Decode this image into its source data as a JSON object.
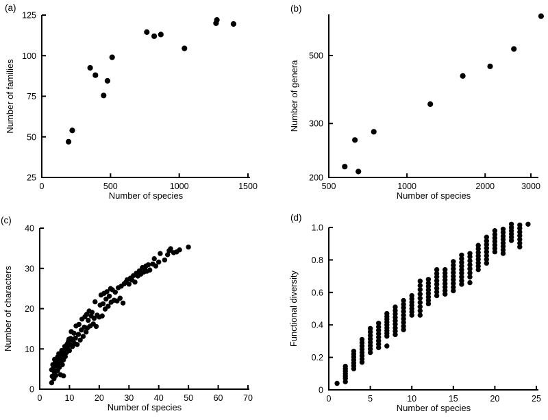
{
  "figure": {
    "background": "#ffffff",
    "ink_color": "#000000",
    "marker": "filled-circle"
  },
  "chart_data": [
    {
      "id": "a",
      "panel_label": "(a)",
      "type": "scatter",
      "xlabel": "Number of species",
      "ylabel": "Number of families",
      "xscale": "linear",
      "yscale": "linear",
      "xlim": [
        0,
        1500
      ],
      "ylim": [
        25,
        125
      ],
      "grid": false,
      "legend": "none",
      "xticks": {
        "values": [
          0,
          500,
          1000,
          1500
        ],
        "labels": [
          "0",
          "500",
          "1000",
          "1500"
        ]
      },
      "yticks": {
        "values": [
          25,
          50,
          75,
          100,
          125
        ],
        "labels": [
          "25",
          "50",
          "75",
          "100",
          "125"
        ]
      },
      "points": [
        [
          195,
          47
        ],
        [
          222,
          54
        ],
        [
          352,
          92.5
        ],
        [
          390,
          88
        ],
        [
          450,
          75.5
        ],
        [
          478,
          84.5
        ],
        [
          512,
          99
        ],
        [
          764,
          114.5
        ],
        [
          818,
          112
        ],
        [
          866,
          113
        ],
        [
          1038,
          104.5
        ],
        [
          1268,
          120
        ],
        [
          1274,
          122
        ],
        [
          1395,
          119.5
        ]
      ]
    },
    {
      "id": "b",
      "panel_label": "(b)",
      "type": "scatter",
      "xlabel": "Number of species",
      "ylabel": "Number of genera",
      "xscale": "log",
      "yscale": "log",
      "xlim": [
        500,
        3000
      ],
      "ylim": [
        200,
        500
      ],
      "grid": false,
      "legend": "none",
      "xticks": {
        "values": [
          500,
          1000,
          2000,
          3000
        ],
        "labels": [
          "500",
          "1000",
          "2000",
          "3000"
        ]
      },
      "yticks": {
        "values": [
          200,
          300,
          500
        ],
        "labels": [
          "200",
          "300",
          "500"
        ]
      },
      "points": [
        [
          576,
          217
        ],
        [
          630,
          265
        ],
        [
          650,
          209
        ],
        [
          745,
          282
        ],
        [
          1230,
          347
        ],
        [
          1640,
          429
        ],
        [
          2090,
          461
        ],
        [
          2580,
          525
        ],
        [
          3285,
          672
        ]
      ]
    },
    {
      "id": "c",
      "panel_label": "(c)",
      "type": "scatter",
      "xlabel": "Number of species",
      "ylabel": "Number of characters",
      "xscale": "linear",
      "yscale": "linear",
      "xlim": [
        0,
        70
      ],
      "ylim": [
        0,
        40
      ],
      "grid": false,
      "legend": "none",
      "xticks": {
        "values": [
          0,
          10,
          20,
          30,
          40,
          50,
          60,
          70
        ],
        "labels": [
          "0",
          "10",
          "20",
          "30",
          "40",
          "50",
          "60",
          "70"
        ]
      },
      "yticks": {
        "values": [
          0,
          10,
          20,
          30,
          40
        ],
        "labels": [
          "0",
          "10",
          "20",
          "30",
          "40"
        ]
      },
      "points": [
        [
          4,
          1.6
        ],
        [
          4.2,
          3.2
        ],
        [
          4,
          4.8
        ],
        [
          4.4,
          6.1
        ],
        [
          4.8,
          2.6
        ],
        [
          5,
          4.1
        ],
        [
          4.6,
          5.2
        ],
        [
          5.2,
          6.6
        ],
        [
          5,
          7.4
        ],
        [
          5.4,
          3.4
        ],
        [
          5.6,
          5.8
        ],
        [
          5.8,
          7.1
        ],
        [
          6,
          4.6
        ],
        [
          6.2,
          6.3
        ],
        [
          6,
          8
        ],
        [
          6.4,
          8.8
        ],
        [
          6.6,
          5.4
        ],
        [
          6.8,
          7.6
        ],
        [
          7,
          3.6
        ],
        [
          7,
          6.8
        ],
        [
          7.2,
          8.4
        ],
        [
          7.4,
          9.6
        ],
        [
          7.6,
          6.1
        ],
        [
          7.8,
          8.9
        ],
        [
          8,
          3.3
        ],
        [
          8,
          7.3
        ],
        [
          8.2,
          9.3
        ],
        [
          8.4,
          10.6
        ],
        [
          8.6,
          8.1
        ],
        [
          8.8,
          10.1
        ],
        [
          9,
          9.1
        ],
        [
          9.2,
          11.2
        ],
        [
          9.4,
          10.2
        ],
        [
          9.6,
          11.8
        ],
        [
          9.8,
          12.4
        ],
        [
          10,
          9.6
        ],
        [
          10.2,
          11.1
        ],
        [
          10.4,
          12.6
        ],
        [
          10.6,
          14.3
        ],
        [
          11,
          10.6
        ],
        [
          11.2,
          12.1
        ],
        [
          11.5,
          13.9
        ],
        [
          11.8,
          11.3
        ],
        [
          12,
          12.7
        ],
        [
          12.2,
          15.7
        ],
        [
          12.6,
          11.1
        ],
        [
          13,
          13.6
        ],
        [
          13.2,
          16.1
        ],
        [
          13.6,
          12.2
        ],
        [
          14,
          14.7
        ],
        [
          14.2,
          17.4
        ],
        [
          14.6,
          13.1
        ],
        [
          15,
          15.4
        ],
        [
          15.2,
          18
        ],
        [
          15.6,
          14.2
        ],
        [
          15.8,
          18.6
        ],
        [
          16,
          15.2
        ],
        [
          16.3,
          17.1
        ],
        [
          16.6,
          19.4
        ],
        [
          17,
          15.7
        ],
        [
          17.3,
          18.2
        ],
        [
          17.6,
          19.1
        ],
        [
          18,
          16.2
        ],
        [
          18.3,
          17.6
        ],
        [
          18.6,
          21.7
        ],
        [
          19,
          15.6
        ],
        [
          19.3,
          18.4
        ],
        [
          20,
          17.9
        ],
        [
          20.3,
          20.9
        ],
        [
          20.6,
          23.4
        ],
        [
          21,
          18.2
        ],
        [
          21.3,
          21.2
        ],
        [
          21.6,
          23.8
        ],
        [
          22,
          19.9
        ],
        [
          22.3,
          22.4
        ],
        [
          22.6,
          24.2
        ],
        [
          23,
          20.6
        ],
        [
          23.4,
          23.1
        ],
        [
          23.8,
          25
        ],
        [
          24,
          21.6
        ],
        [
          24.4,
          24.7
        ],
        [
          25,
          22.1
        ],
        [
          25.4,
          24.1
        ],
        [
          26,
          21.9
        ],
        [
          26.4,
          25.2
        ],
        [
          27,
          22.6
        ],
        [
          27.4,
          25.6
        ],
        [
          28,
          21.4
        ],
        [
          28.4,
          26.2
        ],
        [
          29,
          26.6
        ],
        [
          29.4,
          27.2
        ],
        [
          30,
          26.1
        ],
        [
          30.5,
          27.6
        ],
        [
          31,
          27.1
        ],
        [
          31.5,
          28.2
        ],
        [
          32,
          26.6
        ],
        [
          32.5,
          28.8
        ],
        [
          33,
          28.1
        ],
        [
          33.5,
          29.4
        ],
        [
          34,
          28.6
        ],
        [
          34.5,
          30.2
        ],
        [
          35,
          29.1
        ],
        [
          35.3,
          29.9
        ],
        [
          35.7,
          30.6
        ],
        [
          36,
          29.3
        ],
        [
          36.5,
          30.9
        ],
        [
          37,
          29.6
        ],
        [
          38,
          31.1
        ],
        [
          38.5,
          32.4
        ],
        [
          39,
          30.6
        ],
        [
          40,
          31.6
        ],
        [
          40.5,
          33.7
        ],
        [
          42,
          32.1
        ],
        [
          43,
          33.4
        ],
        [
          43.5,
          34.4
        ],
        [
          44,
          34.9
        ],
        [
          45,
          33.9
        ],
        [
          46,
          34.1
        ],
        [
          47,
          34.6
        ],
        [
          50,
          35.3
        ]
      ]
    },
    {
      "id": "d",
      "panel_label": "(d)",
      "type": "scatter",
      "xlabel": "Number of species",
      "ylabel": "Functional diversity",
      "xscale": "linear",
      "yscale": "linear",
      "xlim": [
        0,
        25
      ],
      "ylim": [
        0,
        1.0
      ],
      "grid": false,
      "legend": "none",
      "xticks": {
        "values": [
          0,
          5,
          10,
          15,
          20,
          25
        ],
        "labels": [
          "0",
          "5",
          "10",
          "15",
          "20",
          "25"
        ]
      },
      "yticks": {
        "values": [
          0,
          0.2,
          0.4,
          0.6,
          0.8,
          1.0
        ],
        "labels": [
          "0",
          "0.2",
          "0.4",
          "0.6",
          "0.8",
          "1.0"
        ]
      },
      "points": [
        [
          1,
          0.04
        ],
        [
          2,
          0.05
        ],
        [
          2,
          0.07
        ],
        [
          2,
          0.085
        ],
        [
          2,
          0.1
        ],
        [
          2,
          0.115
        ],
        [
          2,
          0.13
        ],
        [
          2,
          0.145
        ],
        [
          3,
          0.13
        ],
        [
          3,
          0.148
        ],
        [
          3,
          0.166
        ],
        [
          3,
          0.184
        ],
        [
          3,
          0.202
        ],
        [
          3,
          0.22
        ],
        [
          3,
          0.238
        ],
        [
          4,
          0.17
        ],
        [
          4,
          0.19
        ],
        [
          4,
          0.21
        ],
        [
          4,
          0.23
        ],
        [
          4,
          0.25
        ],
        [
          4,
          0.27
        ],
        [
          4,
          0.29
        ],
        [
          4,
          0.31
        ],
        [
          5,
          0.23
        ],
        [
          5,
          0.251
        ],
        [
          5,
          0.272
        ],
        [
          5,
          0.293
        ],
        [
          5,
          0.314
        ],
        [
          5,
          0.335
        ],
        [
          5,
          0.357
        ],
        [
          5,
          0.378
        ],
        [
          6,
          0.26
        ],
        [
          6,
          0.281
        ],
        [
          6,
          0.302
        ],
        [
          6,
          0.324
        ],
        [
          6,
          0.345
        ],
        [
          6,
          0.367
        ],
        [
          6,
          0.388
        ],
        [
          6,
          0.41
        ],
        [
          7,
          0.27
        ],
        [
          7,
          0.33
        ],
        [
          7,
          0.347
        ],
        [
          7,
          0.364
        ],
        [
          7,
          0.382
        ],
        [
          7,
          0.4
        ],
        [
          7,
          0.417
        ],
        [
          7,
          0.435
        ],
        [
          7,
          0.452
        ],
        [
          7,
          0.47
        ],
        [
          8,
          0.34
        ],
        [
          8,
          0.361
        ],
        [
          8,
          0.382
        ],
        [
          8,
          0.404
        ],
        [
          8,
          0.425
        ],
        [
          8,
          0.446
        ],
        [
          8,
          0.468
        ],
        [
          8,
          0.489
        ],
        [
          8,
          0.51
        ],
        [
          9,
          0.37
        ],
        [
          9,
          0.392
        ],
        [
          9,
          0.415
        ],
        [
          9,
          0.437
        ],
        [
          9,
          0.46
        ],
        [
          9,
          0.482
        ],
        [
          9,
          0.505
        ],
        [
          9,
          0.527
        ],
        [
          9,
          0.55
        ],
        [
          10,
          0.46
        ],
        [
          10,
          0.48
        ],
        [
          10,
          0.5
        ],
        [
          10,
          0.52
        ],
        [
          10,
          0.54
        ],
        [
          10,
          0.56
        ],
        [
          10,
          0.58
        ],
        [
          11,
          0.46
        ],
        [
          11,
          0.486
        ],
        [
          11,
          0.512
        ],
        [
          11,
          0.538
        ],
        [
          11,
          0.564
        ],
        [
          11,
          0.59
        ],
        [
          11,
          0.617
        ],
        [
          11,
          0.643
        ],
        [
          11,
          0.67
        ],
        [
          12,
          0.53
        ],
        [
          12,
          0.551
        ],
        [
          12,
          0.572
        ],
        [
          12,
          0.594
        ],
        [
          12,
          0.615
        ],
        [
          12,
          0.637
        ],
        [
          12,
          0.658
        ],
        [
          12,
          0.68
        ],
        [
          13,
          0.58
        ],
        [
          13,
          0.603
        ],
        [
          13,
          0.626
        ],
        [
          13,
          0.65
        ],
        [
          13,
          0.672
        ],
        [
          13,
          0.695
        ],
        [
          13,
          0.717
        ],
        [
          13,
          0.74
        ],
        [
          14,
          0.59
        ],
        [
          14,
          0.611
        ],
        [
          14,
          0.633
        ],
        [
          14,
          0.654
        ],
        [
          14,
          0.676
        ],
        [
          14,
          0.697
        ],
        [
          14,
          0.719
        ],
        [
          14,
          0.74
        ],
        [
          15,
          0.61
        ],
        [
          15,
          0.632
        ],
        [
          15,
          0.655
        ],
        [
          15,
          0.678
        ],
        [
          15,
          0.7
        ],
        [
          15,
          0.722
        ],
        [
          15,
          0.745
        ],
        [
          15,
          0.768
        ],
        [
          15,
          0.79
        ],
        [
          16,
          0.65
        ],
        [
          16,
          0.672
        ],
        [
          16,
          0.695
        ],
        [
          16,
          0.718
        ],
        [
          16,
          0.74
        ],
        [
          16,
          0.762
        ],
        [
          16,
          0.785
        ],
        [
          16,
          0.808
        ],
        [
          16,
          0.83
        ],
        [
          17,
          0.66
        ],
        [
          17,
          0.695
        ],
        [
          17,
          0.72
        ],
        [
          17,
          0.745
        ],
        [
          17,
          0.77
        ],
        [
          17,
          0.795
        ],
        [
          17,
          0.82
        ],
        [
          17,
          0.84
        ],
        [
          18,
          0.74
        ],
        [
          18,
          0.761
        ],
        [
          18,
          0.782
        ],
        [
          18,
          0.804
        ],
        [
          18,
          0.825
        ],
        [
          18,
          0.846
        ],
        [
          18,
          0.868
        ],
        [
          18,
          0.89
        ],
        [
          19,
          0.78
        ],
        [
          19,
          0.803
        ],
        [
          19,
          0.826
        ],
        [
          19,
          0.85
        ],
        [
          19,
          0.872
        ],
        [
          19,
          0.895
        ],
        [
          19,
          0.917
        ],
        [
          19,
          0.94
        ],
        [
          20,
          0.85
        ],
        [
          20,
          0.871
        ],
        [
          20,
          0.892
        ],
        [
          20,
          0.914
        ],
        [
          20,
          0.935
        ],
        [
          20,
          0.957
        ],
        [
          20,
          0.98
        ],
        [
          21,
          0.84
        ],
        [
          21,
          0.861
        ],
        [
          21,
          0.883
        ],
        [
          21,
          0.904
        ],
        [
          21,
          0.926
        ],
        [
          21,
          0.947
        ],
        [
          21,
          0.969
        ],
        [
          21,
          0.99
        ],
        [
          22,
          0.92
        ],
        [
          22,
          0.94
        ],
        [
          22,
          0.96
        ],
        [
          22,
          0.98
        ],
        [
          22,
          1.0
        ],
        [
          22,
          1.02
        ],
        [
          23,
          0.88
        ],
        [
          23,
          0.903
        ],
        [
          23,
          0.926
        ],
        [
          23,
          0.95
        ],
        [
          23,
          0.972
        ],
        [
          23,
          0.995
        ],
        [
          23,
          1.015
        ],
        [
          24,
          1.02
        ]
      ]
    }
  ]
}
